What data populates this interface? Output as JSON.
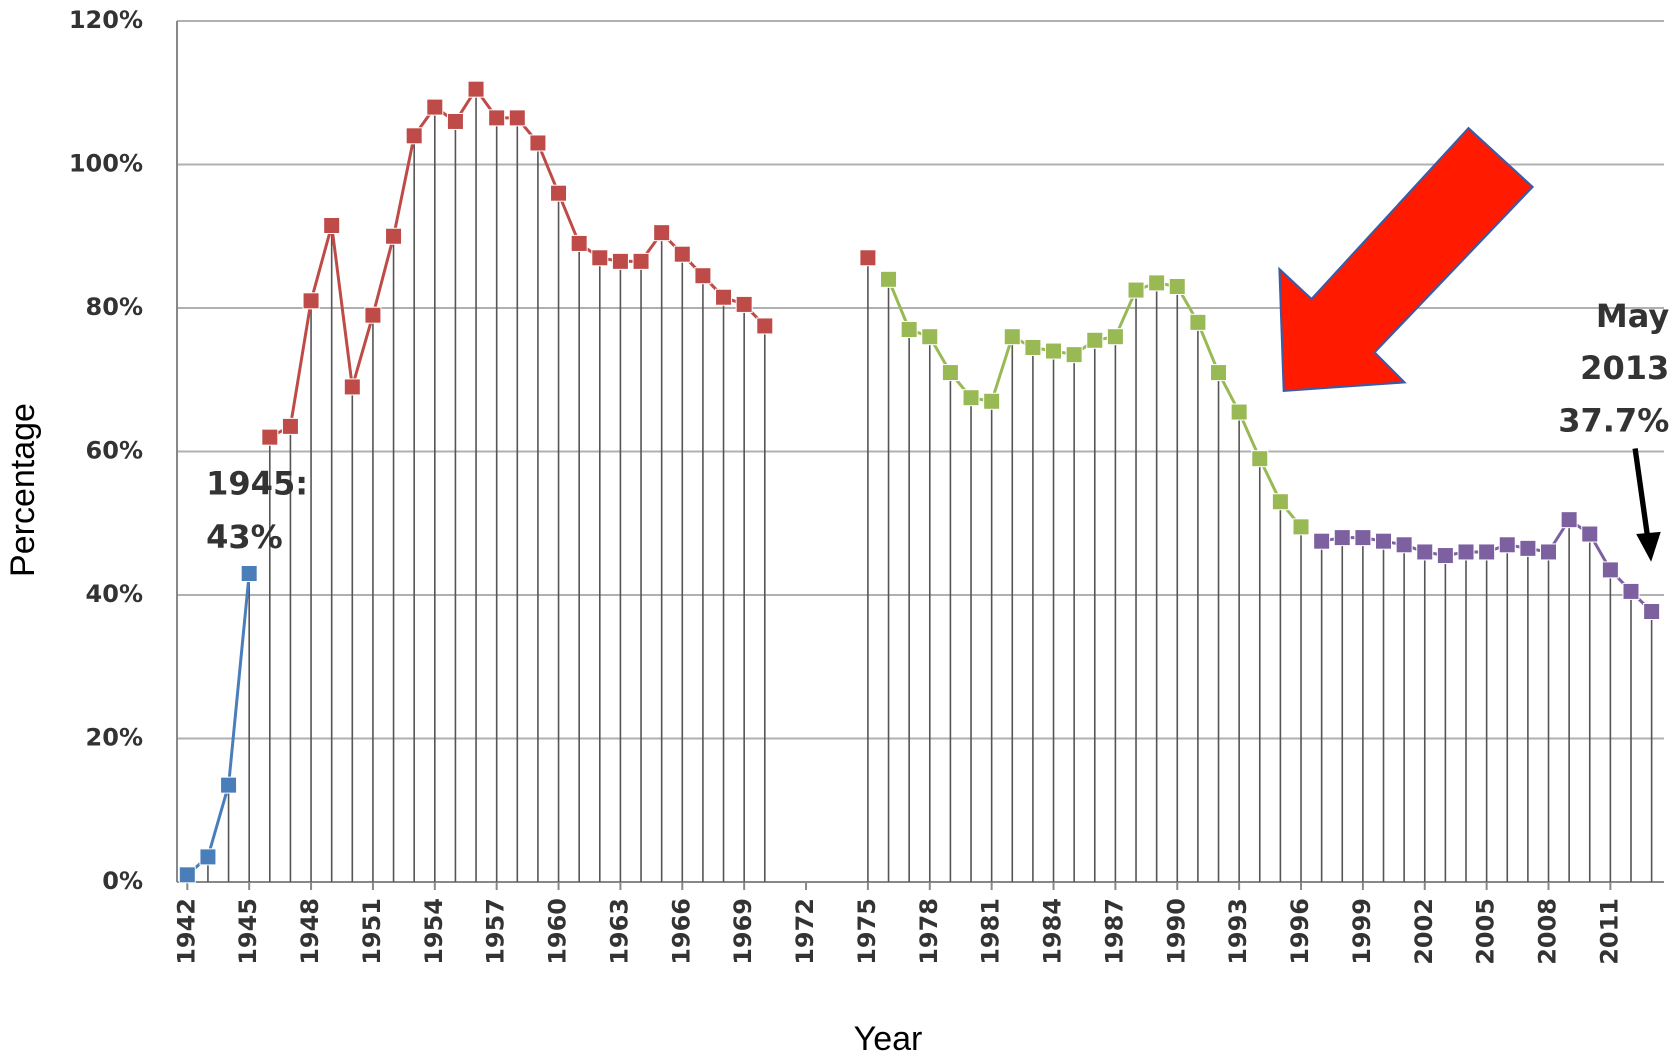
{
  "chart_data": {
    "type": "line",
    "xlabel": "Year",
    "ylabel": "Percentage",
    "xlim": [
      1941.5,
      2013.6
    ],
    "xticks": [
      1942,
      1945,
      1948,
      1951,
      1954,
      1957,
      1960,
      1963,
      1966,
      1969,
      1972,
      1975,
      1978,
      1981,
      1984,
      1987,
      1990,
      1993,
      1996,
      1999,
      2002,
      2005,
      2008,
      2011
    ],
    "ylim": [
      0,
      120
    ],
    "yticks": [
      {
        "value": 0,
        "label": "0%"
      },
      {
        "value": 20,
        "label": "20%"
      },
      {
        "value": 40,
        "label": "40%"
      },
      {
        "value": 60,
        "label": "60%"
      },
      {
        "value": 80,
        "label": "80%"
      },
      {
        "value": 100,
        "label": "100%"
      },
      {
        "value": 120,
        "label": "120%"
      }
    ],
    "grid": true,
    "series": [
      {
        "color": "#4a7ebb",
        "x": [
          1942,
          1943,
          1944,
          1945
        ],
        "values": [
          1,
          3.5,
          13.5,
          43
        ]
      },
      {
        "color": "#be4b48",
        "x": [
          1946,
          1947,
          1948,
          1949,
          1950,
          1951,
          1952,
          1953,
          1954,
          1955,
          1956,
          1957,
          1958,
          1959,
          1960,
          1961,
          1962,
          1963,
          1964,
          1965,
          1966,
          1967,
          1968,
          1969,
          1970,
          1971,
          1972,
          1973,
          1974,
          1975
        ],
        "values": [
          62,
          63.5,
          81,
          91.5,
          69,
          79,
          90,
          104,
          108,
          106,
          110.5,
          106.5,
          106.5,
          103,
          96,
          89,
          87,
          86.5,
          86.5,
          90.5,
          87.5,
          84.5,
          81.5,
          80.5,
          77.5,
          null,
          null,
          null,
          null,
          87
        ]
      },
      {
        "color": "#98b954",
        "x": [
          1976,
          1977,
          1978,
          1979,
          1980,
          1981,
          1982,
          1983,
          1984,
          1985,
          1986,
          1987,
          1988,
          1989,
          1990,
          1991,
          1992,
          1993,
          1994,
          1995,
          1996
        ],
        "values": [
          84,
          77,
          76,
          71,
          67.5,
          67,
          76,
          74.5,
          74,
          73.5,
          75.5,
          76,
          82.5,
          83.5,
          83,
          78,
          71,
          65.5,
          59,
          53,
          49.5
        ]
      },
      {
        "color": "#7d60a0",
        "x": [
          1997,
          1998,
          1999,
          2000,
          2001,
          2002,
          2003,
          2004,
          2005,
          2006,
          2007,
          2008,
          2009,
          2010,
          2011,
          2012,
          2013
        ],
        "values": [
          47.5,
          48,
          48,
          47.5,
          47,
          46,
          45.5,
          46,
          46,
          47,
          46.5,
          46,
          50.5,
          48.5,
          43.5,
          40.5,
          37.7
        ]
      }
    ],
    "annotations": [
      {
        "lines": [
          "1945:",
          "43%"
        ]
      },
      {
        "lines": [
          "May",
          "2013",
          "37.7%"
        ]
      }
    ]
  }
}
